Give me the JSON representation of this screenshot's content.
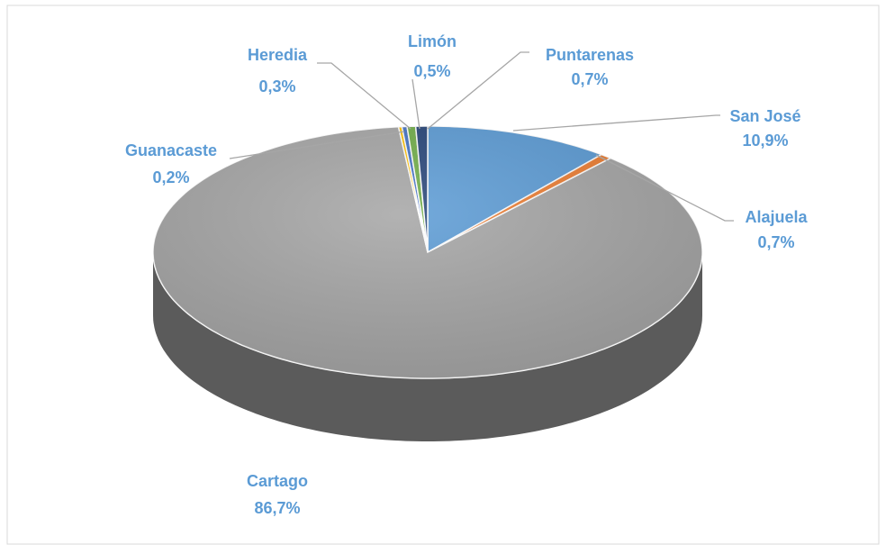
{
  "chart_data": {
    "type": "pie",
    "categories": [
      "San José",
      "Alajuela",
      "Cartago",
      "Guanacaste",
      "Heredia",
      "Limón",
      "Puntarenas"
    ],
    "values": [
      10.9,
      0.7,
      86.7,
      0.2,
      0.3,
      0.5,
      0.7
    ],
    "value_labels": [
      "10,9%",
      "0,7%",
      "86,7%",
      "0,2%",
      "0,3%",
      "0,5%",
      "0,7%"
    ],
    "colors": [
      "#5b9bd5",
      "#ed7d31",
      "#a5a5a5",
      "#ffc000",
      "#4472c4",
      "#70ad47",
      "#264478"
    ]
  }
}
